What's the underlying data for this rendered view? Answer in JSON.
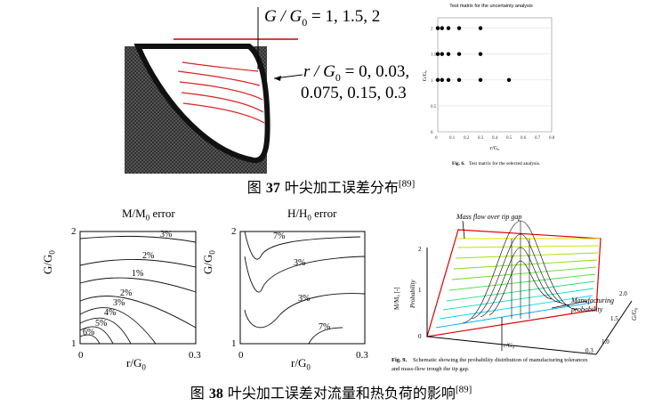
{
  "fig37": {
    "formula_top": "G / G",
    "formula_top_sub": "0",
    "formula_top_rest": " = 1, 1.5, 2",
    "formula_r_1": "r / G",
    "formula_r_sub": "0",
    "formula_r_rest": " = 0, 0.03,",
    "formula_r_2": "0.075, 0.15, 0.3",
    "matrix": {
      "title": "Test matrix for the uncertainty analysis",
      "ylabel": "G/G₀",
      "xlabel": "r/G₀",
      "yticks": [
        "2",
        "1.5",
        "1",
        "0.5",
        "0"
      ],
      "xticks": [
        "0",
        "0.1",
        "0.2",
        "0.3",
        "0.4",
        "0.5",
        "0.6",
        "0.7",
        "0.8"
      ],
      "fig_label": "Fig. 6.",
      "fig_text": "Test matrix for the selected analysis."
    },
    "caption_prefix": "图 ",
    "caption_num": "37",
    "caption_text": " 叶尖加工误差分布",
    "caption_ref": "[89]"
  },
  "fig38": {
    "left_title": "M/M",
    "left_title_sub": "0",
    "left_title_rest": " error",
    "mid_title": "H/H",
    "mid_title_sub": "0",
    "mid_title_rest": " error",
    "axis_y_label": "G/G",
    "axis_y_sub": "0",
    "axis_x_label": "r/G",
    "axis_x_sub": "0",
    "ytick_top": "2",
    "ytick_bot": "1",
    "xtick_left": "0",
    "xtick_right": "0.3",
    "left_contours": [
      "3%",
      "2%",
      "1%",
      "2%",
      "3%",
      "4%",
      "5%",
      "6%"
    ],
    "mid_contours": [
      "7%",
      "3%",
      "3%",
      "7%"
    ],
    "right": {
      "mass_flow": "Mass flow over tip gap",
      "manuf": "Manufacturing",
      "prob": "probability",
      "ylabel": "M/M₀ [-]",
      "prob_axis": "Probability",
      "xlabel": "r/G₀",
      "g_label": "G/G₀",
      "ticks_y": [
        "2",
        "1",
        "0"
      ],
      "ticks_g": [
        "2.0",
        "1.5",
        "1.0"
      ],
      "tick_x": "0.3",
      "fig_label": "Fig. 9.",
      "fig_text_1": "Schematic showing the probability distribution of manufacturing tolerances",
      "fig_text_2": "and mass-flow trough the tip gap."
    },
    "caption_prefix": "图 ",
    "caption_num": "38",
    "caption_text": " 叶尖加工误差对流量和热负荷的影响",
    "caption_ref": "[89]"
  }
}
